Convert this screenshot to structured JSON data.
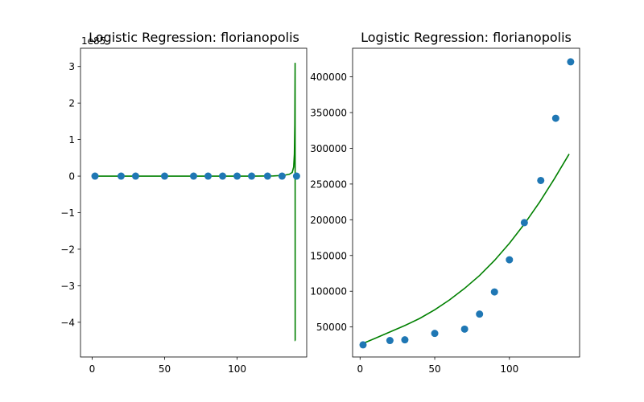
{
  "chart_data": [
    {
      "type": "scatter",
      "title": "Logistic Regression: florianopolis",
      "offset_label": "1e85",
      "xlim": [
        -8,
        148
      ],
      "ylim": [
        -4.95,
        3.5
      ],
      "x_ticks": [
        0,
        50,
        100
      ],
      "y_ticks": [
        -4,
        -3,
        -2,
        -1,
        0,
        1,
        2,
        3
      ],
      "y_tick_labels": [
        "−4",
        "−3",
        "−2",
        "−1",
        "0",
        "1",
        "2",
        "3"
      ],
      "series": [
        {
          "kind": "scatter",
          "color": "#1f77b4",
          "x": [
            2,
            20,
            30,
            50,
            70,
            80,
            90,
            100,
            110,
            121,
            131,
            141
          ],
          "y": [
            0,
            0,
            0,
            0,
            0,
            0,
            0,
            0,
            0,
            0,
            0,
            0
          ]
        },
        {
          "kind": "line",
          "color": "#008000",
          "x": [
            2,
            60,
            110,
            125,
            132,
            136,
            138,
            139,
            139.5,
            139.8,
            140,
            140.05,
            140.1
          ],
          "y": [
            0,
            0,
            0,
            0.005,
            0.02,
            0.05,
            0.1,
            0.25,
            0.6,
            1.4,
            3.1,
            -4.5,
            -4.5
          ]
        }
      ]
    },
    {
      "type": "scatter",
      "title": "Logistic Regression: florianopolis",
      "xlim": [
        -5,
        147
      ],
      "ylim": [
        8000,
        440000
      ],
      "x_ticks": [
        0,
        50,
        100
      ],
      "y_ticks": [
        50000,
        100000,
        150000,
        200000,
        250000,
        300000,
        350000,
        400000
      ],
      "series": [
        {
          "kind": "scatter",
          "color": "#1f77b4",
          "x": [
            2,
            20,
            30,
            50,
            70,
            80,
            90,
            100,
            110,
            121,
            131,
            141
          ],
          "y": [
            25000,
            31000,
            32000,
            41000,
            47000,
            68000,
            99000,
            144000,
            196000,
            255000,
            342000,
            421000
          ]
        },
        {
          "kind": "line",
          "color": "#008000",
          "x": [
            2,
            10,
            20,
            30,
            40,
            50,
            60,
            70,
            80,
            90,
            100,
            110,
            120,
            130,
            140
          ],
          "y": [
            27000,
            34000,
            43000,
            52000,
            62000,
            74000,
            88000,
            104000,
            122000,
            143000,
            167000,
            194000,
            224000,
            257000,
            292000
          ]
        }
      ]
    }
  ]
}
